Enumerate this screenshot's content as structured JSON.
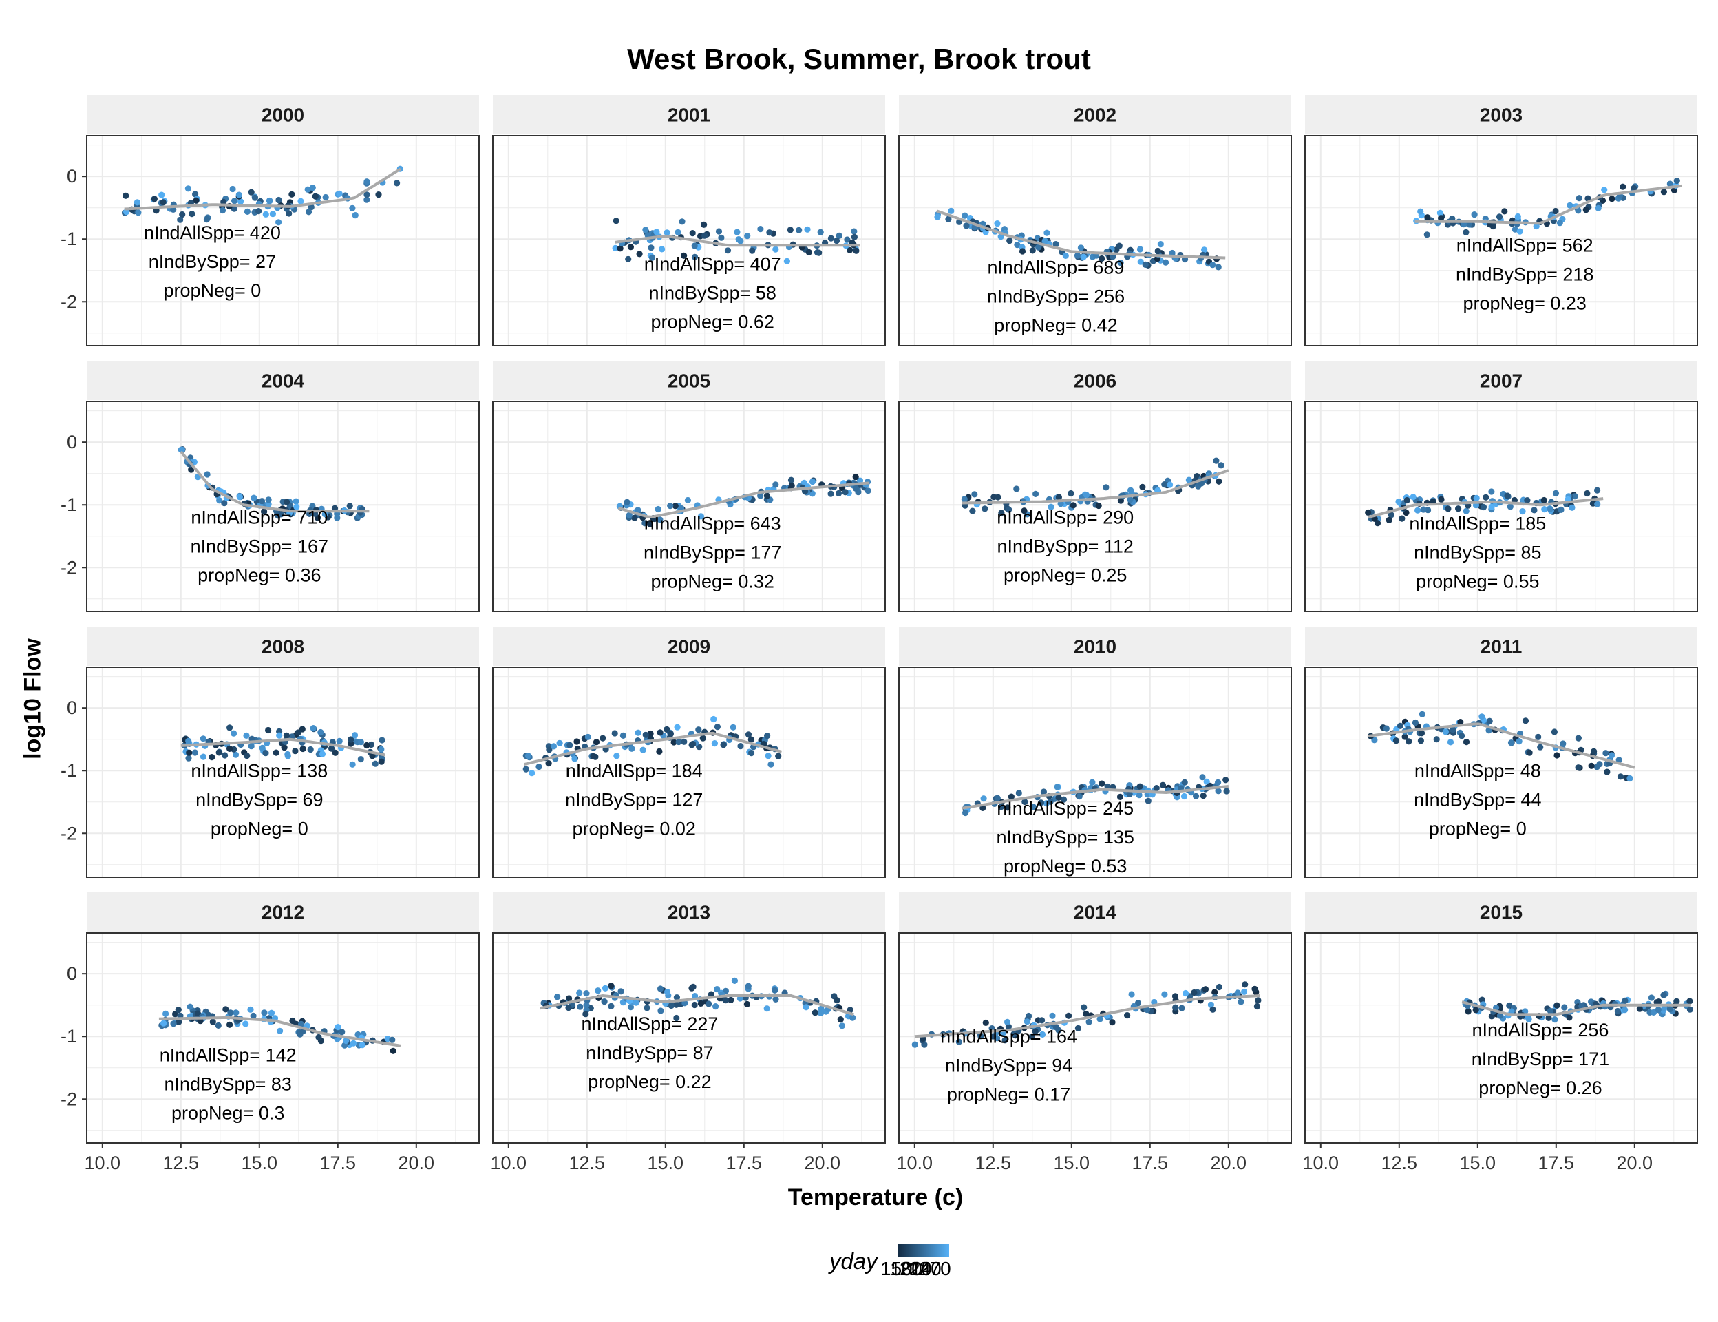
{
  "title": "West Brook, Summer, Brook trout",
  "xlabel": "Temperature (c)",
  "ylabel": "log10 Flow",
  "legend": {
    "title": "yday",
    "labels": [
      "150",
      "180",
      "210",
      "240",
      "270"
    ],
    "color_low": "#132b43",
    "color_high": "#56b1f7",
    "placement": "bottom"
  },
  "colors": {
    "strip_fill": "#efefef",
    "panel_border": "#333333",
    "grid": "#ebebeb",
    "smooth_line": "#a9a9a9"
  },
  "chart_data": {
    "type": "scatter",
    "facet_by": "year",
    "xlim": [
      9.5,
      22
    ],
    "ylim": [
      -2.7,
      0.65
    ],
    "x_ticks": [
      10,
      12.5,
      15,
      17.5,
      20
    ],
    "x_tick_labels": [
      "10.0",
      "12.5",
      "15.0",
      "17.5",
      "20.0"
    ],
    "y_ticks": [
      0,
      -1,
      -2
    ],
    "y_tick_labels": [
      "0",
      "-1",
      "-2"
    ],
    "grid": true,
    "annotation_labels": [
      "nIndAllSpp= ",
      "nIndBySpp= ",
      "propNeg= "
    ],
    "panels": [
      {
        "year": "2000",
        "xr": [
          10.7,
          19.5
        ],
        "trend": [
          [
            10.7,
            -0.52
          ],
          [
            13.5,
            -0.45
          ],
          [
            16,
            -0.48
          ],
          [
            18,
            -0.35
          ],
          [
            19.5,
            0.12
          ]
        ],
        "spread": 0.22,
        "seed": 1,
        "n": 90,
        "nIndAllSpp": "420",
        "nIndBySpp": "27",
        "propNeg": "0",
        "ann_x": 13.5,
        "ann_y": -1.0
      },
      {
        "year": "2001",
        "xr": [
          13.4,
          21.2
        ],
        "trend": [
          [
            13.4,
            -1.05
          ],
          [
            15,
            -0.95
          ],
          [
            17,
            -1.1
          ],
          [
            21.2,
            -1.1
          ]
        ],
        "spread": 0.25,
        "seed": 2,
        "n": 80,
        "nIndAllSpp": "407",
        "nIndBySpp": "58",
        "propNeg": "0.62",
        "ann_x": 16.5,
        "ann_y": -1.5
      },
      {
        "year": "2002",
        "xr": [
          10.7,
          19.9
        ],
        "trend": [
          [
            10.7,
            -0.55
          ],
          [
            13,
            -0.95
          ],
          [
            15,
            -1.2
          ],
          [
            17,
            -1.25
          ],
          [
            19.9,
            -1.3
          ]
        ],
        "spread": 0.15,
        "seed": 3,
        "n": 110,
        "nIndAllSpp": "689",
        "nIndBySpp": "256",
        "propNeg": "0.42",
        "ann_x": 14.5,
        "ann_y": -1.55
      },
      {
        "year": "2003",
        "xr": [
          13.0,
          21.5
        ],
        "trend": [
          [
            13,
            -0.72
          ],
          [
            15,
            -0.72
          ],
          [
            17,
            -0.75
          ],
          [
            19,
            -0.3
          ],
          [
            21.5,
            -0.15
          ]
        ],
        "spread": 0.18,
        "seed": 4,
        "n": 80,
        "nIndAllSpp": "562",
        "nIndBySpp": "218",
        "propNeg": "0.23",
        "ann_x": 16.5,
        "ann_y": -1.2
      },
      {
        "year": "2004",
        "xr": [
          12.5,
          18.5
        ],
        "trend": [
          [
            12.5,
            -0.15
          ],
          [
            13.5,
            -0.75
          ],
          [
            14.5,
            -1.0
          ],
          [
            16,
            -1.1
          ],
          [
            18.5,
            -1.1
          ]
        ],
        "spread": 0.12,
        "seed": 5,
        "n": 90,
        "nIndAllSpp": "710",
        "nIndBySpp": "167",
        "propNeg": "0.36",
        "ann_x": 15.0,
        "ann_y": -1.3
      },
      {
        "year": "2005",
        "xr": [
          13.5,
          21.5
        ],
        "trend": [
          [
            13.5,
            -1.05
          ],
          [
            14.5,
            -1.2
          ],
          [
            16,
            -1.05
          ],
          [
            18,
            -0.8
          ],
          [
            21.5,
            -0.65
          ]
        ],
        "spread": 0.15,
        "seed": 6,
        "n": 90,
        "nIndAllSpp": "643",
        "nIndBySpp": "177",
        "propNeg": "0.32",
        "ann_x": 16.5,
        "ann_y": -1.4
      },
      {
        "year": "2006",
        "xr": [
          11.5,
          20.0
        ],
        "trend": [
          [
            11.5,
            -0.97
          ],
          [
            14,
            -0.95
          ],
          [
            16,
            -0.9
          ],
          [
            18,
            -0.8
          ],
          [
            20,
            -0.45
          ]
        ],
        "spread": 0.15,
        "seed": 7,
        "n": 90,
        "nIndAllSpp": "290",
        "nIndBySpp": "112",
        "propNeg": "0.25",
        "ann_x": 14.8,
        "ann_y": -1.3
      },
      {
        "year": "2007",
        "xr": [
          11.5,
          19.0
        ],
        "trend": [
          [
            11.5,
            -1.2
          ],
          [
            13,
            -1.0
          ],
          [
            15.5,
            -0.95
          ],
          [
            17,
            -1.0
          ],
          [
            19,
            -0.9
          ]
        ],
        "spread": 0.18,
        "seed": 8,
        "n": 90,
        "nIndAllSpp": "185",
        "nIndBySpp": "85",
        "propNeg": "0.55",
        "ann_x": 15.0,
        "ann_y": -1.4
      },
      {
        "year": "2008",
        "xr": [
          12.5,
          19.0
        ],
        "trend": [
          [
            12.5,
            -0.6
          ],
          [
            14.5,
            -0.55
          ],
          [
            16,
            -0.5
          ],
          [
            17.5,
            -0.6
          ],
          [
            19,
            -0.75
          ]
        ],
        "spread": 0.22,
        "seed": 9,
        "n": 100,
        "nIndAllSpp": "138",
        "nIndBySpp": "69",
        "propNeg": "0",
        "ann_x": 15.0,
        "ann_y": -1.1
      },
      {
        "year": "2009",
        "xr": [
          10.5,
          18.7
        ],
        "trend": [
          [
            10.5,
            -0.9
          ],
          [
            12.5,
            -0.65
          ],
          [
            15,
            -0.5
          ],
          [
            16.5,
            -0.4
          ],
          [
            18.7,
            -0.7
          ]
        ],
        "spread": 0.2,
        "seed": 10,
        "n": 100,
        "nIndAllSpp": "184",
        "nIndBySpp": "127",
        "propNeg": "0.02",
        "ann_x": 14.0,
        "ann_y": -1.1
      },
      {
        "year": "2010",
        "xr": [
          11.5,
          20.0
        ],
        "trend": [
          [
            11.5,
            -1.6
          ],
          [
            14,
            -1.4
          ],
          [
            16,
            -1.3
          ],
          [
            18,
            -1.35
          ],
          [
            20,
            -1.25
          ]
        ],
        "spread": 0.14,
        "seed": 11,
        "n": 100,
        "nIndAllSpp": "245",
        "nIndBySpp": "135",
        "propNeg": "0.53",
        "ann_x": 14.8,
        "ann_y": -1.7
      },
      {
        "year": "2011",
        "xr": [
          11.5,
          20.0
        ],
        "trend": [
          [
            11.5,
            -0.45
          ],
          [
            13,
            -0.35
          ],
          [
            15,
            -0.25
          ],
          [
            17,
            -0.55
          ],
          [
            20,
            -0.95
          ]
        ],
        "spread": 0.22,
        "seed": 12,
        "n": 90,
        "nIndAllSpp": "48",
        "nIndBySpp": "44",
        "propNeg": "0",
        "ann_x": 15.0,
        "ann_y": -1.1
      },
      {
        "year": "2012",
        "xr": [
          11.8,
          19.5
        ],
        "trend": [
          [
            11.8,
            -0.72
          ],
          [
            14,
            -0.7
          ],
          [
            15.5,
            -0.75
          ],
          [
            17,
            -0.95
          ],
          [
            19.5,
            -1.15
          ]
        ],
        "spread": 0.16,
        "seed": 13,
        "n": 90,
        "nIndAllSpp": "142",
        "nIndBySpp": "83",
        "propNeg": "0.3",
        "ann_x": 14.0,
        "ann_y": -1.4
      },
      {
        "year": "2013",
        "xr": [
          11.0,
          21.0
        ],
        "trend": [
          [
            11,
            -0.55
          ],
          [
            13,
            -0.35
          ],
          [
            15,
            -0.45
          ],
          [
            17,
            -0.35
          ],
          [
            19,
            -0.35
          ],
          [
            21,
            -0.65
          ]
        ],
        "spread": 0.2,
        "seed": 14,
        "n": 110,
        "nIndAllSpp": "227",
        "nIndBySpp": "87",
        "propNeg": "0.22",
        "ann_x": 14.5,
        "ann_y": -0.9
      },
      {
        "year": "2014",
        "xr": [
          10.0,
          21.0
        ],
        "trend": [
          [
            10,
            -1.0
          ],
          [
            13,
            -0.9
          ],
          [
            15,
            -0.75
          ],
          [
            17,
            -0.55
          ],
          [
            19,
            -0.4
          ],
          [
            21,
            -0.35
          ]
        ],
        "spread": 0.16,
        "seed": 15,
        "n": 100,
        "nIndAllSpp": "164",
        "nIndBySpp": "94",
        "propNeg": "0.17",
        "ann_x": 13.0,
        "ann_y": -1.1
      },
      {
        "year": "2015",
        "xr": [
          14.5,
          21.8
        ],
        "trend": [
          [
            14.5,
            -0.45
          ],
          [
            16,
            -0.65
          ],
          [
            17.5,
            -0.65
          ],
          [
            19,
            -0.5
          ],
          [
            21.8,
            -0.5
          ]
        ],
        "spread": 0.14,
        "seed": 16,
        "n": 110,
        "nIndAllSpp": "256",
        "nIndBySpp": "171",
        "propNeg": "0.26",
        "ann_x": 17.0,
        "ann_y": -1.0
      }
    ]
  }
}
